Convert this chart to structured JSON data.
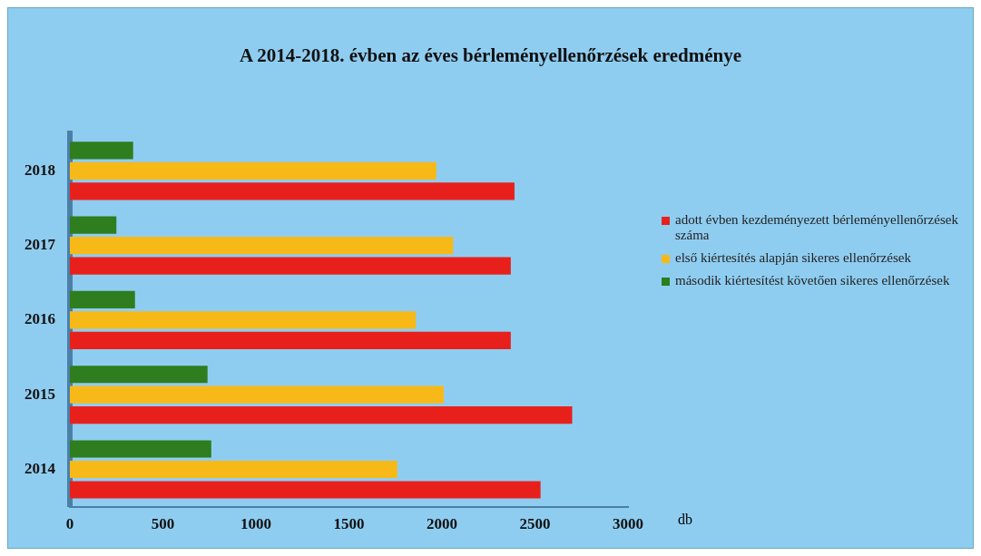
{
  "chart_data": {
    "type": "bar",
    "orientation": "horizontal",
    "title": "A 2014-2018. évben az éves bérleményellenőrzések eredménye",
    "xlabel": "db",
    "categories": [
      "2018",
      "2017",
      "2016",
      "2015",
      "2014"
    ],
    "series": [
      {
        "name": "adott évben kezdeményezett bérleményellenőrzések száma",
        "color": "#e8201c",
        "values": [
          2390,
          2370,
          2370,
          2700,
          2530
        ]
      },
      {
        "name": "első kiértesítés alapján sikeres ellenőrzések",
        "color": "#f7b918",
        "values": [
          1970,
          2060,
          1860,
          2010,
          1760
        ]
      },
      {
        "name": "második kiértesítést követően sikeres ellenőrzések",
        "color": "#2e7d1e",
        "values": [
          340,
          250,
          350,
          740,
          760
        ]
      }
    ],
    "xlim": [
      0,
      3000
    ],
    "xticks": [
      0,
      500,
      1000,
      1500,
      2000,
      2500,
      3000
    ],
    "grid": false,
    "legend": "right"
  }
}
